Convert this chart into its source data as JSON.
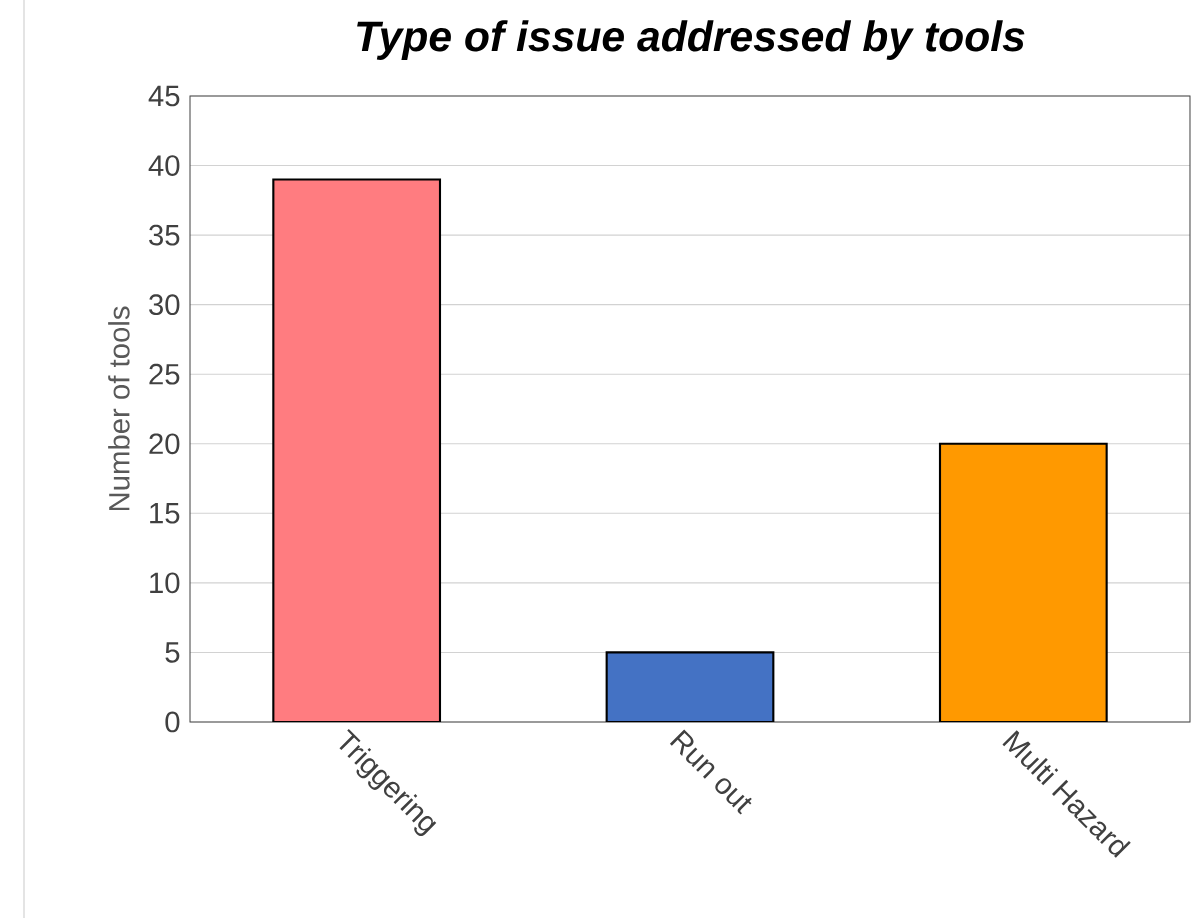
{
  "chart_data": {
    "type": "bar",
    "title": "Type of issue addressed by tools",
    "ylabel": "Number of tools",
    "categories": [
      "Triggering",
      "Run out",
      "Multi Hazard"
    ],
    "values": [
      39,
      5,
      20
    ],
    "colors": [
      "#ff7c80",
      "#4472c4",
      "#ff9900"
    ],
    "ylim": [
      0,
      45
    ],
    "yticks": [
      0,
      5,
      10,
      15,
      20,
      25,
      30,
      35,
      40,
      45
    ],
    "grid": "y"
  }
}
